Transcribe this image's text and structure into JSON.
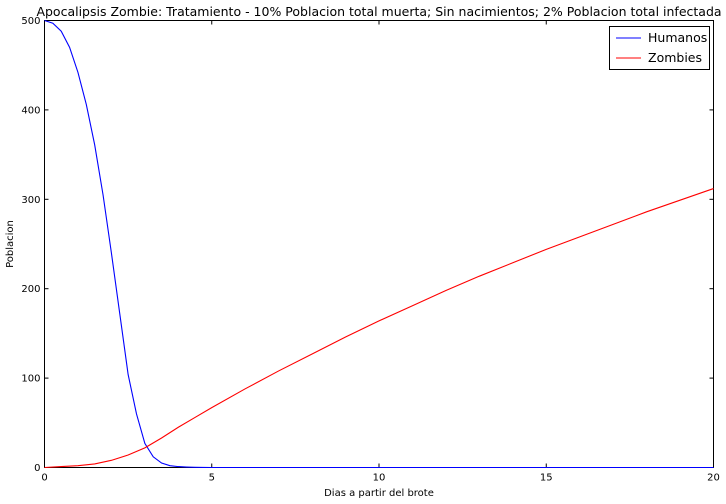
{
  "chart_data": {
    "type": "line",
    "title": "Apocalipsis Zombie: Tratamiento - 10% Poblacion total muerta; Sin nacimientos; 2% Poblacion total infectada",
    "xlabel": "Dias a partir del brote",
    "ylabel": "Poblacion",
    "xlim": [
      0,
      20
    ],
    "ylim": [
      0,
      500
    ],
    "xticks": [
      0,
      5,
      10,
      15,
      20
    ],
    "yticks": [
      0,
      100,
      200,
      300,
      400,
      500
    ],
    "grid": false,
    "legend_position": "top-right",
    "series": [
      {
        "name": "Humanos",
        "color": "#0000ff",
        "x": [
          0,
          0.25,
          0.5,
          0.75,
          1.0,
          1.25,
          1.5,
          1.75,
          2.0,
          2.25,
          2.5,
          2.75,
          3.0,
          3.25,
          3.5,
          3.75,
          4.0,
          4.25,
          4.5,
          4.75,
          5.0,
          6,
          8,
          10,
          12,
          14,
          16,
          18,
          20
        ],
        "y": [
          500,
          497,
          488,
          470,
          442,
          406,
          361,
          305,
          240,
          172,
          104,
          60,
          27,
          12,
          5,
          2,
          1,
          0.5,
          0.2,
          0.1,
          0,
          0,
          0,
          0,
          0,
          0,
          0,
          0,
          0
        ]
      },
      {
        "name": "Zombies",
        "color": "#ff0000",
        "x": [
          0,
          0.5,
          1.0,
          1.5,
          2.0,
          2.5,
          3.0,
          3.5,
          4.0,
          4.5,
          5.0,
          6,
          7,
          8,
          9,
          10,
          11,
          12,
          13,
          14,
          15,
          16,
          17,
          18,
          19,
          20
        ],
        "y": [
          0,
          1,
          2,
          4,
          8,
          14,
          22,
          33,
          45,
          56,
          67,
          88,
          108,
          127,
          146,
          164,
          181,
          198,
          214,
          229,
          244,
          258,
          272,
          286,
          299,
          312
        ]
      }
    ]
  }
}
